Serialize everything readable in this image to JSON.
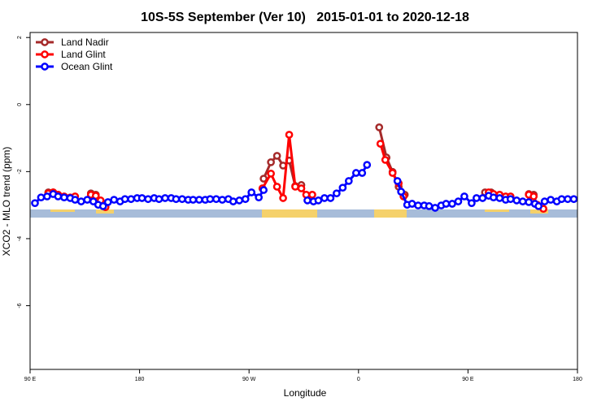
{
  "chart_data": {
    "type": "line",
    "title": "10S-5S September (Ver 10)   2015-01-01 to 2020-12-18",
    "x_label": "Longitude",
    "y_label": "XCO2 - MLO trend (ppm)",
    "xlim": [
      90,
      540
    ],
    "ylim": [
      -7.9,
      2.15
    ],
    "xticks": [
      {
        "value": 90,
        "label": "90 E"
      },
      180,
      {
        "value": 270,
        "label": "90 W"
      },
      {
        "value": 360,
        "label": "0"
      },
      {
        "value": 450,
        "label": "90 E"
      },
      {
        "value": 540,
        "label": "180"
      }
    ],
    "yticks": [
      2,
      0,
      -2,
      -4,
      -6
    ],
    "legend": "top-left",
    "series": [
      {
        "name": "Land Nadir",
        "color": "#a52a2a",
        "x": [
          105,
          109,
          113,
          null,
          140,
          144,
          null,
          282,
          288,
          293,
          298,
          303,
          308,
          313,
          null,
          377,
          383,
          388,
          393,
          398,
          null,
          464,
          469,
          null,
          500,
          504
        ],
        "values": [
          -2.62,
          -2.62,
          -2.69,
          null,
          -2.65,
          -2.69,
          null,
          -2.21,
          -1.72,
          -1.53,
          -1.82,
          -1.67,
          -2.43,
          -2.4,
          null,
          -0.68,
          -1.58,
          -2.01,
          -2.45,
          -2.69,
          null,
          -2.62,
          -2.62,
          null,
          -2.67,
          -2.69
        ]
      },
      {
        "name": "Land Glint",
        "color": "#ff0000",
        "x": [
          105,
          109,
          113,
          118,
          123,
          127,
          null,
          140,
          144,
          148,
          152,
          null,
          281,
          288,
          293,
          298,
          303,
          308,
          313,
          317,
          322,
          null,
          378,
          382,
          388,
          393,
          397,
          null,
          467,
          471,
          476,
          481,
          485,
          null,
          500,
          504,
          507,
          512
        ],
        "values": [
          -2.65,
          -2.62,
          -2.69,
          -2.74,
          -2.77,
          -2.74,
          null,
          -2.69,
          -2.72,
          -2.86,
          -3.06,
          null,
          -2.5,
          -2.06,
          -2.45,
          -2.79,
          -0.9,
          -2.45,
          -2.5,
          -2.69,
          -2.69,
          null,
          -1.17,
          -1.65,
          -2.04,
          -2.35,
          -2.74,
          null,
          -2.62,
          -2.67,
          -2.69,
          -2.74,
          -2.74,
          null,
          -2.69,
          -2.74,
          -2.99,
          -3.11
        ]
      },
      {
        "name": "Ocean Glint",
        "color": "#0000ff",
        "x": [
          94,
          99,
          104,
          109,
          113,
          118,
          123,
          127,
          132,
          137,
          142,
          146,
          150,
          154,
          159,
          164,
          168,
          173,
          178,
          182,
          187,
          192,
          196,
          201,
          206,
          210,
          215,
          220,
          224,
          229,
          234,
          238,
          243,
          248,
          253,
          257,
          262,
          267,
          272,
          278,
          282,
          null,
          318,
          323,
          327,
          332,
          337,
          342,
          347,
          352,
          358,
          363,
          367,
          null,
          392,
          395,
          400,
          404,
          409,
          414,
          418,
          423,
          428,
          432,
          437,
          442,
          447,
          453,
          457,
          462,
          467,
          471,
          476,
          481,
          485,
          490,
          495,
          500,
          505,
          508,
          513,
          518,
          523,
          527,
          532,
          537
        ],
        "values": [
          -2.94,
          -2.77,
          -2.74,
          -2.67,
          -2.74,
          -2.77,
          -2.79,
          -2.84,
          -2.89,
          -2.84,
          -2.89,
          -2.99,
          -3.03,
          -2.91,
          -2.84,
          -2.89,
          -2.82,
          -2.82,
          -2.79,
          -2.79,
          -2.82,
          -2.79,
          -2.82,
          -2.79,
          -2.79,
          -2.82,
          -2.82,
          -2.84,
          -2.84,
          -2.84,
          -2.84,
          -2.82,
          -2.82,
          -2.84,
          -2.82,
          -2.89,
          -2.86,
          -2.82,
          -2.62,
          -2.77,
          -2.55,
          null,
          -2.86,
          -2.89,
          -2.86,
          -2.79,
          -2.79,
          -2.65,
          -2.48,
          -2.28,
          -2.04,
          -2.04,
          -1.8,
          null,
          -2.28,
          -2.6,
          -2.99,
          -2.96,
          -3.01,
          -3.01,
          -3.03,
          -3.08,
          -3.01,
          -2.96,
          -2.96,
          -2.89,
          -2.74,
          -2.94,
          -2.79,
          -2.79,
          -2.72,
          -2.77,
          -2.79,
          -2.84,
          -2.82,
          -2.86,
          -2.89,
          -2.91,
          -2.96,
          -3.03,
          -2.89,
          -2.84,
          -2.89,
          -2.82,
          -2.82,
          -2.82
        ]
      }
    ]
  }
}
